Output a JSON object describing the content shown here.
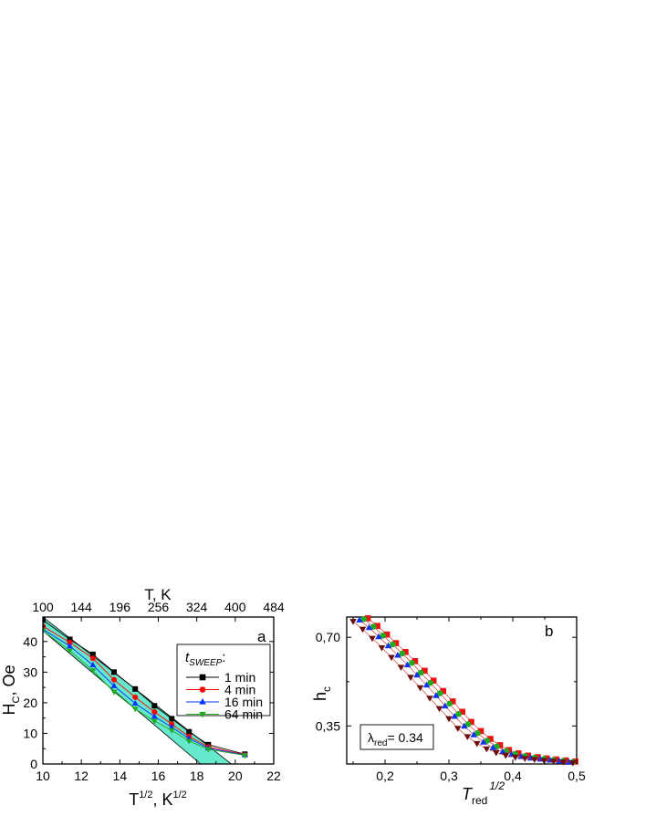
{
  "chart_data": [
    {
      "panel": "a",
      "type": "line",
      "panel_label": "a",
      "xlabel": "T",
      "xlabel_sup1": "1/2",
      "xlabel_mid": ", K",
      "xlabel_sup2": "1/2",
      "ylabel": "H",
      "ylabel_sub": "C",
      "ylabel_rest": ", Oe",
      "top_axis_label": "T, K",
      "xlim": [
        10,
        22
      ],
      "ylim": [
        0,
        48
      ],
      "x_ticks": [
        "10",
        "12",
        "14",
        "16",
        "18",
        "20",
        "22"
      ],
      "y_ticks": [
        "0",
        "10",
        "20",
        "30",
        "40"
      ],
      "top_ticks": [
        "100",
        "144",
        "196",
        "256",
        "324",
        "400",
        "484"
      ],
      "legend_title": "t",
      "legend_title_sub": "SWEEP",
      "legend_title_colon": ":",
      "legend_position": "right",
      "x": [
        10.0,
        11.4,
        12.6,
        13.7,
        14.8,
        15.8,
        16.7,
        17.6,
        18.6,
        20.5
      ],
      "series": [
        {
          "name": "1 min",
          "color": "#000000",
          "marker": "square",
          "values": [
            47.0,
            40.7,
            35.8,
            30.0,
            24.5,
            19.0,
            14.8,
            10.5,
            6.3,
            3.2
          ]
        },
        {
          "name": "4 min",
          "color": "#ff0000",
          "marker": "circle",
          "values": [
            45.0,
            39.7,
            34.5,
            27.5,
            21.8,
            17.0,
            13.0,
            9.0,
            5.6,
            3.0
          ]
        },
        {
          "name": "16 min",
          "color": "#0033ff",
          "marker": "triangle-up",
          "values": [
            44.0,
            38.5,
            32.3,
            25.5,
            19.8,
            15.5,
            12.0,
            8.3,
            5.2,
            2.9
          ]
        },
        {
          "name": "64 min",
          "color": "#22aa22",
          "marker": "triangle-down",
          "values": [
            43.5,
            37.0,
            30.5,
            23.5,
            18.0,
            14.0,
            11.0,
            7.5,
            4.8,
            2.8
          ]
        }
      ],
      "band": {
        "color": "#66e8cc",
        "upper": [
          [
            10.0,
            48.0
          ],
          [
            19.8,
            0.0
          ]
        ],
        "lower": [
          [
            10.0,
            43.5
          ],
          [
            18.2,
            0.0
          ]
        ]
      }
    },
    {
      "panel": "b",
      "type": "scatter",
      "panel_label": "b",
      "xlabel": "T",
      "xlabel_sub": "red",
      "xlabel_sup": "1/2",
      "ylabel": "h",
      "ylabel_sub": "c",
      "xlim": [
        0.14,
        0.5
      ],
      "ylim": [
        0.2,
        0.78
      ],
      "x_ticks": [
        "0,2",
        "0,3",
        "0,4",
        "0,5"
      ],
      "y_ticks": [
        "0,35",
        "0,70"
      ],
      "annotation_symbol": "λ",
      "annotation_sub": "red",
      "annotation_text": "= 0.34",
      "series": [
        {
          "color": "#ee1111",
          "marker": "square",
          "x": [
            0.173,
            0.188,
            0.203,
            0.217,
            0.232,
            0.247,
            0.262,
            0.276,
            0.291,
            0.306,
            0.321,
            0.335,
            0.35,
            0.365,
            0.38,
            0.394,
            0.409,
            0.424,
            0.439,
            0.453,
            0.468,
            0.483,
            0.498
          ],
          "values": [
            0.775,
            0.745,
            0.711,
            0.677,
            0.642,
            0.606,
            0.568,
            0.529,
            0.488,
            0.447,
            0.406,
            0.366,
            0.33,
            0.299,
            0.274,
            0.255,
            0.242,
            0.233,
            0.227,
            0.222,
            0.218,
            0.214,
            0.21
          ]
        },
        {
          "color": "#22aa22",
          "marker": "circle",
          "x": [
            0.167,
            0.182,
            0.197,
            0.212,
            0.227,
            0.242,
            0.256,
            0.271,
            0.286,
            0.301,
            0.315,
            0.33,
            0.345,
            0.36,
            0.375,
            0.39,
            0.404,
            0.419,
            0.434,
            0.449,
            0.464,
            0.479,
            0.494
          ],
          "values": [
            0.772,
            0.742,
            0.707,
            0.672,
            0.636,
            0.599,
            0.56,
            0.52,
            0.479,
            0.438,
            0.397,
            0.357,
            0.322,
            0.292,
            0.269,
            0.251,
            0.239,
            0.231,
            0.225,
            0.22,
            0.216,
            0.212,
            0.208
          ]
        },
        {
          "color": "#1133ee",
          "marker": "triangle-up",
          "x": [
            0.16,
            0.175,
            0.19,
            0.205,
            0.22,
            0.235,
            0.25,
            0.265,
            0.28,
            0.294,
            0.309,
            0.324,
            0.339,
            0.354,
            0.369,
            0.384,
            0.398,
            0.413,
            0.428,
            0.443,
            0.458,
            0.473,
            0.488
          ],
          "values": [
            0.768,
            0.738,
            0.702,
            0.666,
            0.629,
            0.591,
            0.551,
            0.511,
            0.47,
            0.429,
            0.388,
            0.349,
            0.315,
            0.286,
            0.264,
            0.248,
            0.237,
            0.229,
            0.223,
            0.219,
            0.215,
            0.211,
            0.207
          ]
        },
        {
          "color": "#6b0d0d",
          "marker": "triangle-down",
          "x": [
            0.15,
            0.165,
            0.18,
            0.195,
            0.21,
            0.225,
            0.24,
            0.255,
            0.27,
            0.285,
            0.3,
            0.314,
            0.329,
            0.344,
            0.359,
            0.374,
            0.389,
            0.404,
            0.419,
            0.434,
            0.449,
            0.464,
            0.479,
            0.494
          ],
          "values": [
            0.763,
            0.732,
            0.696,
            0.659,
            0.621,
            0.582,
            0.542,
            0.501,
            0.46,
            0.419,
            0.379,
            0.341,
            0.308,
            0.281,
            0.26,
            0.245,
            0.234,
            0.227,
            0.222,
            0.218,
            0.214,
            0.211,
            0.208,
            0.205
          ]
        }
      ]
    }
  ]
}
